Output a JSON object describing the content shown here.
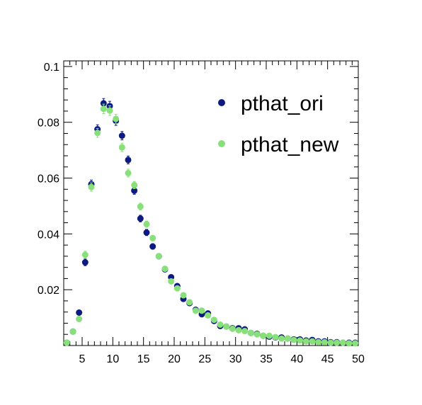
{
  "chart_data": {
    "type": "scatter",
    "xlim": [
      2,
      50
    ],
    "ylim": [
      0,
      0.102
    ],
    "x_ticks": [
      5,
      10,
      15,
      20,
      25,
      30,
      35,
      40,
      45,
      50
    ],
    "y_ticks": [
      0.02,
      0.04,
      0.06,
      0.08,
      0.1
    ],
    "x_tick_labels": [
      "5",
      "10",
      "15",
      "20",
      "25",
      "30",
      "35",
      "40",
      "45",
      "50"
    ],
    "y_tick_labels": [
      "0.02",
      "0.04",
      "0.06",
      "0.08",
      "0.1"
    ],
    "grid": false,
    "legend_position": "top-right",
    "x": [
      2.5,
      3.5,
      4.5,
      5.5,
      6.5,
      7.5,
      8.5,
      9.5,
      10.5,
      11.5,
      12.5,
      13.5,
      14.5,
      15.5,
      16.5,
      17.5,
      18.5,
      19.5,
      20.5,
      21.5,
      22.5,
      23.5,
      24.5,
      25.5,
      26.5,
      27.5,
      28.5,
      29.5,
      30.5,
      31.5,
      32.5,
      33.5,
      34.5,
      35.5,
      36.5,
      37.5,
      38.5,
      39.5,
      40.5,
      41.5,
      42.5,
      43.5,
      44.5,
      45.5,
      46.5,
      47.5,
      48.5,
      49.5
    ],
    "series": [
      {
        "name": "pthat_ori",
        "color": "#0d1a80",
        "values": [
          0.001,
          0.005,
          0.0118,
          0.0298,
          0.0578,
          0.0775,
          0.0868,
          0.0858,
          0.0805,
          0.0752,
          0.0665,
          0.0555,
          0.0455,
          0.0405,
          0.0355,
          0.032,
          0.0273,
          0.0245,
          0.0213,
          0.0167,
          0.0152,
          0.0128,
          0.0112,
          0.0115,
          0.0088,
          0.007,
          0.0068,
          0.0062,
          0.0062,
          0.0058,
          0.0045,
          0.0042,
          0.0035,
          0.0032,
          0.0029,
          0.0029,
          0.0025,
          0.0022,
          0.0022,
          0.0018,
          0.002,
          0.0015,
          0.0015,
          0.0012,
          0.0012,
          0.001,
          0.001,
          0.001
        ],
        "errors": [
          0.0003,
          0.0005,
          0.0008,
          0.0012,
          0.0015,
          0.0016,
          0.0017,
          0.0017,
          0.0016,
          0.0015,
          0.0014,
          0.0013,
          0.0012,
          0.0011,
          0.001,
          0.0009,
          0.0009,
          0.0008,
          0.0008,
          0.0007,
          0.0007,
          0.0006,
          0.0006,
          0.0006,
          0.0005,
          0.0005,
          0.0004,
          0.0004,
          0.0004,
          0.0004,
          0.0003,
          0.0003,
          0.0003,
          0.0003,
          0.0003,
          0.0003,
          0.0003,
          0.0003,
          0.0003,
          0.0002,
          0.0002,
          0.0002,
          0.0002,
          0.0002,
          0.0002,
          0.0002,
          0.0002,
          0.0002
        ]
      },
      {
        "name": "pthat_new",
        "color": "#88e07a",
        "values": [
          0.001,
          0.005,
          0.0095,
          0.0325,
          0.0568,
          0.0762,
          0.0848,
          0.0842,
          0.0812,
          0.071,
          0.0618,
          0.0575,
          0.0498,
          0.0435,
          0.0385,
          0.032,
          0.0275,
          0.023,
          0.0205,
          0.018,
          0.0155,
          0.0125,
          0.0125,
          0.0108,
          0.0092,
          0.0075,
          0.0068,
          0.006,
          0.0055,
          0.0052,
          0.0045,
          0.004,
          0.0035,
          0.0035,
          0.003,
          0.0025,
          0.0025,
          0.002,
          0.0018,
          0.0015,
          0.0015,
          0.0012,
          0.0012,
          0.001,
          0.001,
          0.001,
          0.0008,
          0.0008
        ],
        "errors": [
          0.0003,
          0.0005,
          0.0008,
          0.0013,
          0.0015,
          0.0016,
          0.0017,
          0.0017,
          0.0016,
          0.0015,
          0.0014,
          0.0013,
          0.0012,
          0.0011,
          0.001,
          0.0009,
          0.0009,
          0.0008,
          0.0008,
          0.0007,
          0.0007,
          0.0006,
          0.0006,
          0.0006,
          0.0005,
          0.0005,
          0.0004,
          0.0004,
          0.0004,
          0.0004,
          0.0003,
          0.0003,
          0.0003,
          0.0003,
          0.0003,
          0.0003,
          0.0003,
          0.0003,
          0.0003,
          0.0002,
          0.0002,
          0.0002,
          0.0002,
          0.0002,
          0.0002,
          0.0002,
          0.0002,
          0.0002
        ]
      }
    ]
  }
}
